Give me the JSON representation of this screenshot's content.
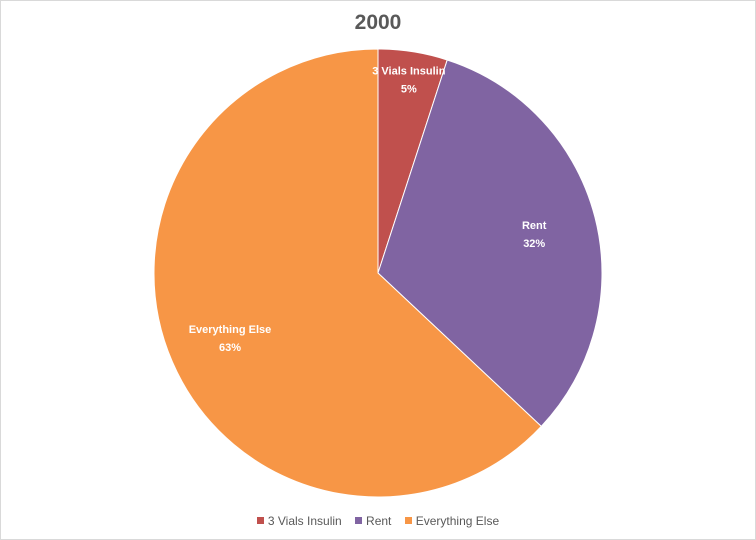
{
  "chart_data": {
    "type": "pie",
    "title": "2000",
    "categories": [
      "3 Vials Insulin",
      "Rent",
      "Everything Else"
    ],
    "values": [
      5,
      32,
      63
    ],
    "data_labels": [
      {
        "category": "3 Vials Insulin",
        "value": "5%"
      },
      {
        "category": "Rent",
        "value": "32%"
      },
      {
        "category": "Everything Else",
        "value": "63%"
      }
    ],
    "colors": [
      "#C0504D",
      "#8064A2",
      "#F79646"
    ],
    "legend_position": "bottom",
    "start_angle": "12 o'clock",
    "direction": "clockwise"
  }
}
